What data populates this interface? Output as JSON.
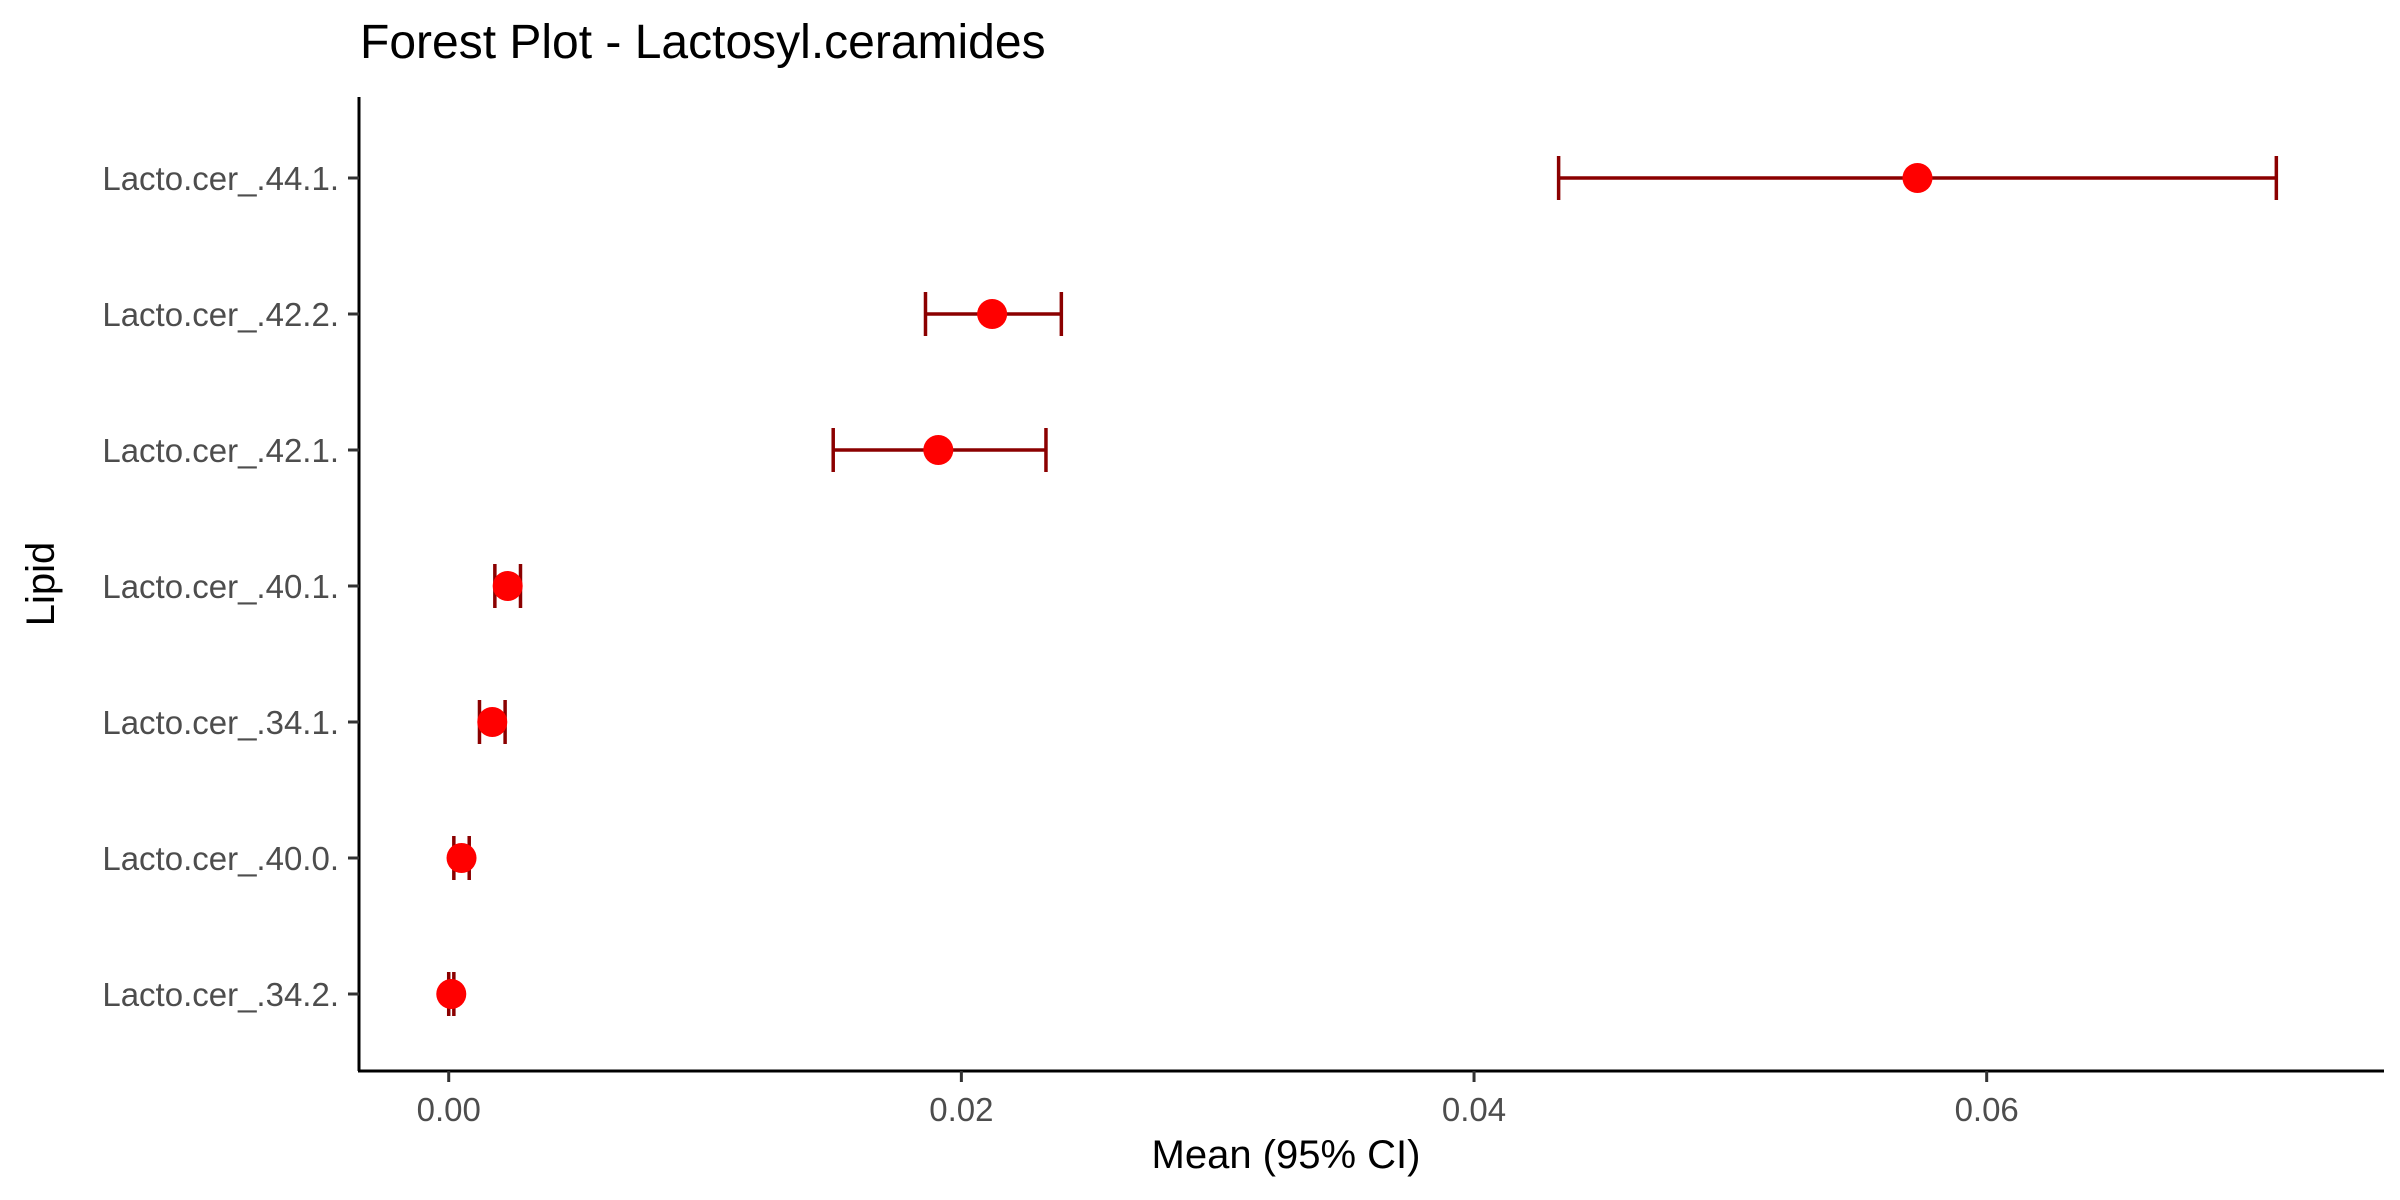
{
  "chart_data": {
    "type": "scatter",
    "title": "Forest Plot - Lactosyl.ceramides",
    "xlabel": "Mean (95% CI)",
    "ylabel": "Lipid",
    "x_ticks": [
      "0.00",
      "0.02",
      "0.04",
      "0.06"
    ],
    "x_tick_values": [
      0.0,
      0.02,
      0.04,
      0.06
    ],
    "xlim": [
      -0.0035,
      0.0755
    ],
    "grid": false,
    "legend": "none",
    "point_color": "#ff0000",
    "errorbar_color": "#8b0000",
    "rows": [
      {
        "label": "Lacto.cer_.44.1.",
        "mean": 0.0573,
        "lower": 0.0433,
        "upper": 0.0713
      },
      {
        "label": "Lacto.cer_.42.2.",
        "mean": 0.0212,
        "lower": 0.0186,
        "upper": 0.0239
      },
      {
        "label": "Lacto.cer_.42.1.",
        "mean": 0.0191,
        "lower": 0.015,
        "upper": 0.0233
      },
      {
        "label": "Lacto.cer_.40.1.",
        "mean": 0.0023,
        "lower": 0.0018,
        "upper": 0.0028
      },
      {
        "label": "Lacto.cer_.34.1.",
        "mean": 0.0017,
        "lower": 0.0012,
        "upper": 0.0022
      },
      {
        "label": "Lacto.cer_.40.0.",
        "mean": 0.0005,
        "lower": 0.0002,
        "upper": 0.0008
      },
      {
        "label": "Lacto.cer_.34.2.",
        "mean": 0.0001,
        "lower": 0.0,
        "upper": 0.0002
      }
    ]
  }
}
